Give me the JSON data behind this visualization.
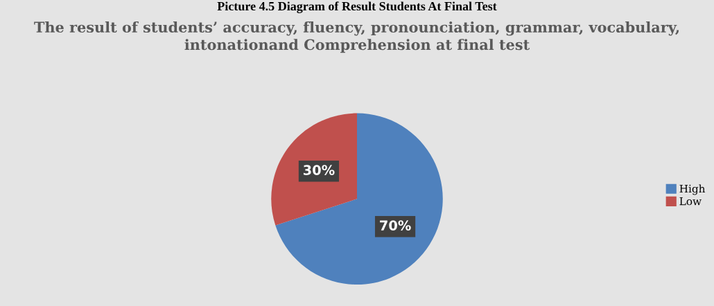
{
  "chart_data": {
    "type": "pie",
    "title": "The result of students’ accuracy, fluency, pronounciation, grammar, vocabulary, intonationand Comprehension at final test",
    "annotations": [
      "Picture 4.5 Diagram of Result Students At Final Test"
    ],
    "categories": [
      "High",
      "Low"
    ],
    "values": [
      70,
      30
    ],
    "colors": [
      "#4f81bd",
      "#c0504d"
    ],
    "value_labels": [
      "70%",
      "30%"
    ],
    "legend": "right"
  }
}
